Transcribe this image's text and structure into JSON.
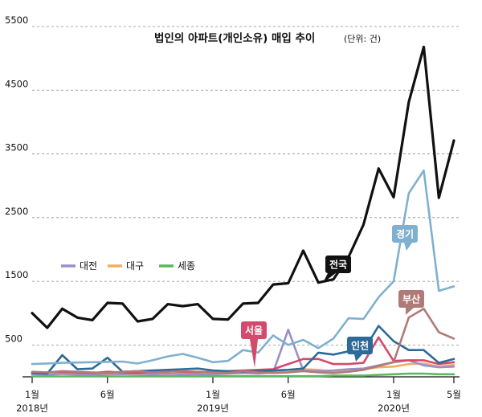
{
  "chart_data": {
    "type": "line",
    "title": "법인의 아파트(개인소유) 매입 추이",
    "unit_note": "(단위: 건)",
    "ylim": [
      0,
      5500
    ],
    "y_ticks": [
      500,
      1500,
      2500,
      3500,
      4500,
      5500
    ],
    "grid": "horizontal dashed",
    "x_tick_labels": [
      {
        "index": 0,
        "month": "1월",
        "year": "2018년"
      },
      {
        "index": 5,
        "month": "6월",
        "year": ""
      },
      {
        "index": 12,
        "month": "1월",
        "year": "2019년"
      },
      {
        "index": 17,
        "month": "6월",
        "year": ""
      },
      {
        "index": 24,
        "month": "1월",
        "year": "2020년"
      },
      {
        "index": 28,
        "month": "5월",
        "year": ""
      }
    ],
    "legend": {
      "placement": "left-middle",
      "entries": [
        {
          "name": "대전",
          "color": "#9a8fc8"
        },
        {
          "name": "대구",
          "color": "#f0ae64"
        },
        {
          "name": "세종",
          "color": "#5cb85c"
        }
      ]
    },
    "series": [
      {
        "name": "전국",
        "color": "#111111",
        "values": [
          1000,
          770,
          1070,
          930,
          890,
          1160,
          1150,
          870,
          910,
          1140,
          1110,
          1140,
          910,
          900,
          1150,
          1160,
          1450,
          1470,
          1980,
          1480,
          1530,
          1880,
          2390,
          3270,
          2820,
          4310,
          5180,
          2810,
          3710
        ]
      },
      {
        "name": "경기",
        "color": "#7fb0cf",
        "values": [
          200,
          210,
          220,
          225,
          230,
          235,
          240,
          210,
          260,
          320,
          360,
          300,
          230,
          250,
          420,
          380,
          650,
          500,
          580,
          450,
          600,
          920,
          910,
          1250,
          1500,
          2880,
          3240,
          1350,
          1420
        ]
      },
      {
        "name": "부산",
        "color": "#b07a76",
        "values": [
          80,
          70,
          90,
          80,
          70,
          60,
          80,
          90,
          70,
          80,
          90,
          80,
          70,
          60,
          90,
          70,
          60,
          70,
          90,
          70,
          60,
          80,
          110,
          170,
          230,
          930,
          1070,
          700,
          600
        ]
      },
      {
        "name": "인천",
        "color": "#2c6a98",
        "values": [
          60,
          50,
          340,
          120,
          130,
          300,
          80,
          90,
          100,
          110,
          120,
          130,
          100,
          90,
          80,
          90,
          100,
          110,
          130,
          380,
          350,
          400,
          410,
          800,
          560,
          420,
          420,
          220,
          280
        ]
      },
      {
        "name": "서울",
        "color": "#d44a6c",
        "values": [
          60,
          70,
          80,
          70,
          60,
          80,
          70,
          60,
          80,
          90,
          80,
          70,
          80,
          90,
          100,
          110,
          120,
          200,
          280,
          280,
          200,
          200,
          220,
          620,
          250,
          260,
          260,
          200,
          230
        ]
      },
      {
        "name": "대전",
        "color": "#9a8fc8",
        "values": [
          40,
          30,
          50,
          40,
          30,
          50,
          40,
          50,
          40,
          50,
          40,
          30,
          40,
          50,
          60,
          50,
          70,
          740,
          100,
          90,
          100,
          120,
          130,
          180,
          230,
          260,
          180,
          150,
          160
        ]
      },
      {
        "name": "대구",
        "color": "#f0ae64",
        "values": [
          30,
          40,
          30,
          40,
          50,
          40,
          30,
          40,
          50,
          40,
          60,
          50,
          40,
          50,
          60,
          70,
          80,
          70,
          120,
          110,
          80,
          90,
          120,
          150,
          160,
          200,
          210,
          160,
          190
        ]
      },
      {
        "name": "세종",
        "color": "#5cb85c",
        "values": [
          10,
          10,
          10,
          10,
          10,
          10,
          10,
          10,
          10,
          10,
          10,
          10,
          10,
          10,
          10,
          10,
          10,
          10,
          10,
          10,
          20,
          20,
          20,
          30,
          40,
          50,
          50,
          40,
          40
        ]
      }
    ],
    "callouts": [
      {
        "label": "전국",
        "series": "전국",
        "index": 20,
        "text_color": "#ffffff"
      },
      {
        "label": "경기",
        "series": "경기",
        "index": 24,
        "text_color": "#ffffff"
      },
      {
        "label": "부산",
        "series": "부산",
        "index": 25,
        "text_color": "#ffffff"
      },
      {
        "label": "인천",
        "series": "인천",
        "index": 23,
        "text_color": "#ffffff"
      },
      {
        "label": "서울",
        "series": "서울",
        "index": 14,
        "text_color": "#ffffff"
      }
    ]
  }
}
